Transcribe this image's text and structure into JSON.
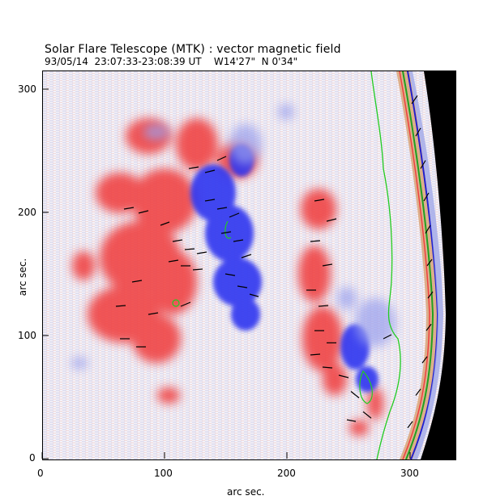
{
  "title": "Solar Flare Telescope (MTK) : vector magnetic field",
  "subtitle": "93/05/14  23:07:33-23:08:39 UT    W14'27\"  N 0'34\"",
  "axes": {
    "xlabel": "arc sec.",
    "ylabel": "arc sec.",
    "x_ticks": [
      "0",
      "100",
      "200",
      "300"
    ],
    "y_ticks": [
      "0",
      "100",
      "200",
      "300"
    ],
    "x_range": [
      0,
      335
    ],
    "y_range": [
      0,
      315
    ]
  },
  "image": {
    "description_icon": "magnetogram-image",
    "positive_color": "#ff3030",
    "negative_color": "#3030ff",
    "contour_color": "#22cc22",
    "vector_color": "#000000",
    "off_limb_color": "#000000"
  }
}
